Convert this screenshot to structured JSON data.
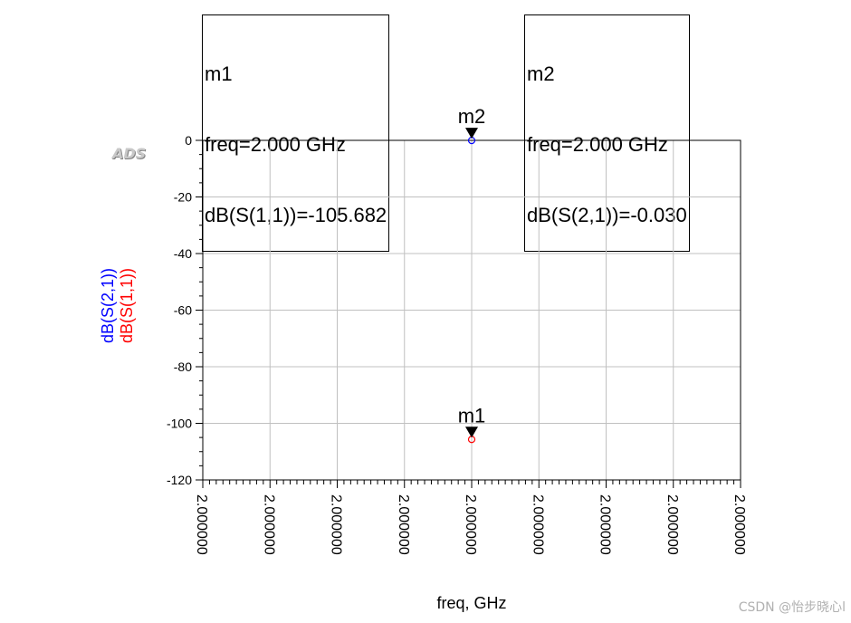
{
  "chart_data": {
    "type": "scatter",
    "x_ticks": [
      "2.000000",
      "2.000000",
      "2.000000",
      "2.000000",
      "2.000000",
      "2.000000",
      "2.000000",
      "2.000000",
      "2.000000"
    ],
    "y_ticks": [
      0,
      -20,
      -40,
      -60,
      -80,
      -100,
      -120
    ],
    "ylim": [
      -120,
      0
    ],
    "xlabel": "freq, GHz",
    "ylabels": [
      {
        "text": "dB(S(2,1))",
        "color": "#0000ff"
      },
      {
        "text": "dB(S(1,1))",
        "color": "#ff0000"
      }
    ],
    "grid": true,
    "series": [
      {
        "name": "dB(S(2,1))",
        "color": "#0000ff",
        "x": [
          2.0
        ],
        "y": [
          -0.03
        ]
      },
      {
        "name": "dB(S(1,1))",
        "color": "#ff0000",
        "x": [
          2.0
        ],
        "y": [
          -105.682
        ]
      }
    ],
    "markers": [
      {
        "name": "m1",
        "lines": [
          "m1",
          "freq=2.000 GHz",
          "dB(S(1,1))=-105.682"
        ],
        "y": -105.682
      },
      {
        "name": "m2",
        "lines": [
          "m2",
          "freq=2.000 GHz",
          "dB(S(2,1))=-0.030"
        ],
        "y": -0.03
      }
    ]
  },
  "logo_text": "ADS",
  "watermark": "CSDN @怡步晓心l"
}
